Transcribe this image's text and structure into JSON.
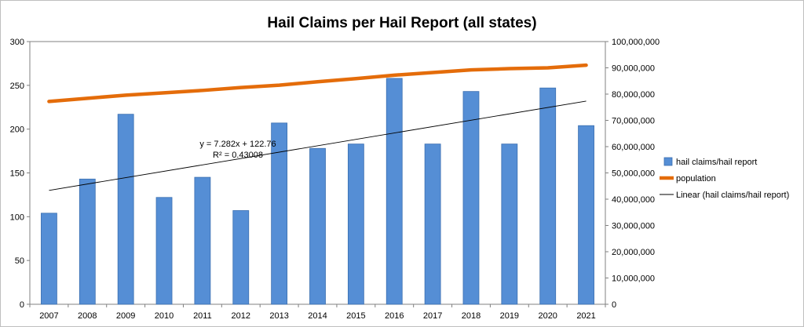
{
  "chart_data": {
    "type": "bar",
    "title": "Hail Claims per Hail Report (all states)",
    "categories": [
      "2007",
      "2008",
      "2009",
      "2010",
      "2011",
      "2012",
      "2013",
      "2014",
      "2015",
      "2016",
      "2017",
      "2018",
      "2019",
      "2020",
      "2021"
    ],
    "series": [
      {
        "name": "hail claims/hail report",
        "type": "bar",
        "axis": "left",
        "color": "#558ed5",
        "values": [
          104,
          143,
          217,
          122,
          145,
          107,
          207,
          178,
          183,
          258,
          183,
          243,
          183,
          247,
          204
        ]
      },
      {
        "name": "population",
        "type": "line",
        "axis": "right",
        "color": "#e46c0a",
        "values": [
          77200000,
          78400000,
          79600000,
          80500000,
          81400000,
          82500000,
          83400000,
          84700000,
          85900000,
          87200000,
          88200000,
          89200000,
          89700000,
          90000000,
          91000000
        ]
      },
      {
        "name": "Linear (hail claims/hail report)",
        "type": "trendline",
        "color": "#000000",
        "slope": 7.282,
        "intercept": 122.76,
        "equation": "y = 7.282x + 122.76",
        "r_squared": "R² = 0.43008"
      }
    ],
    "y_left": {
      "ylim": [
        0,
        300
      ],
      "ticks": [
        "0",
        "50",
        "100",
        "150",
        "200",
        "250",
        "300"
      ]
    },
    "y_right": {
      "ylim": [
        0,
        100000000
      ],
      "ticks": [
        "0",
        "10,000,000",
        "20,000,000",
        "30,000,000",
        "40,000,000",
        "50,000,000",
        "60,000,000",
        "70,000,000",
        "80,000,000",
        "90,000,000",
        "100,000,000"
      ]
    },
    "grid": false,
    "legend": "right"
  }
}
